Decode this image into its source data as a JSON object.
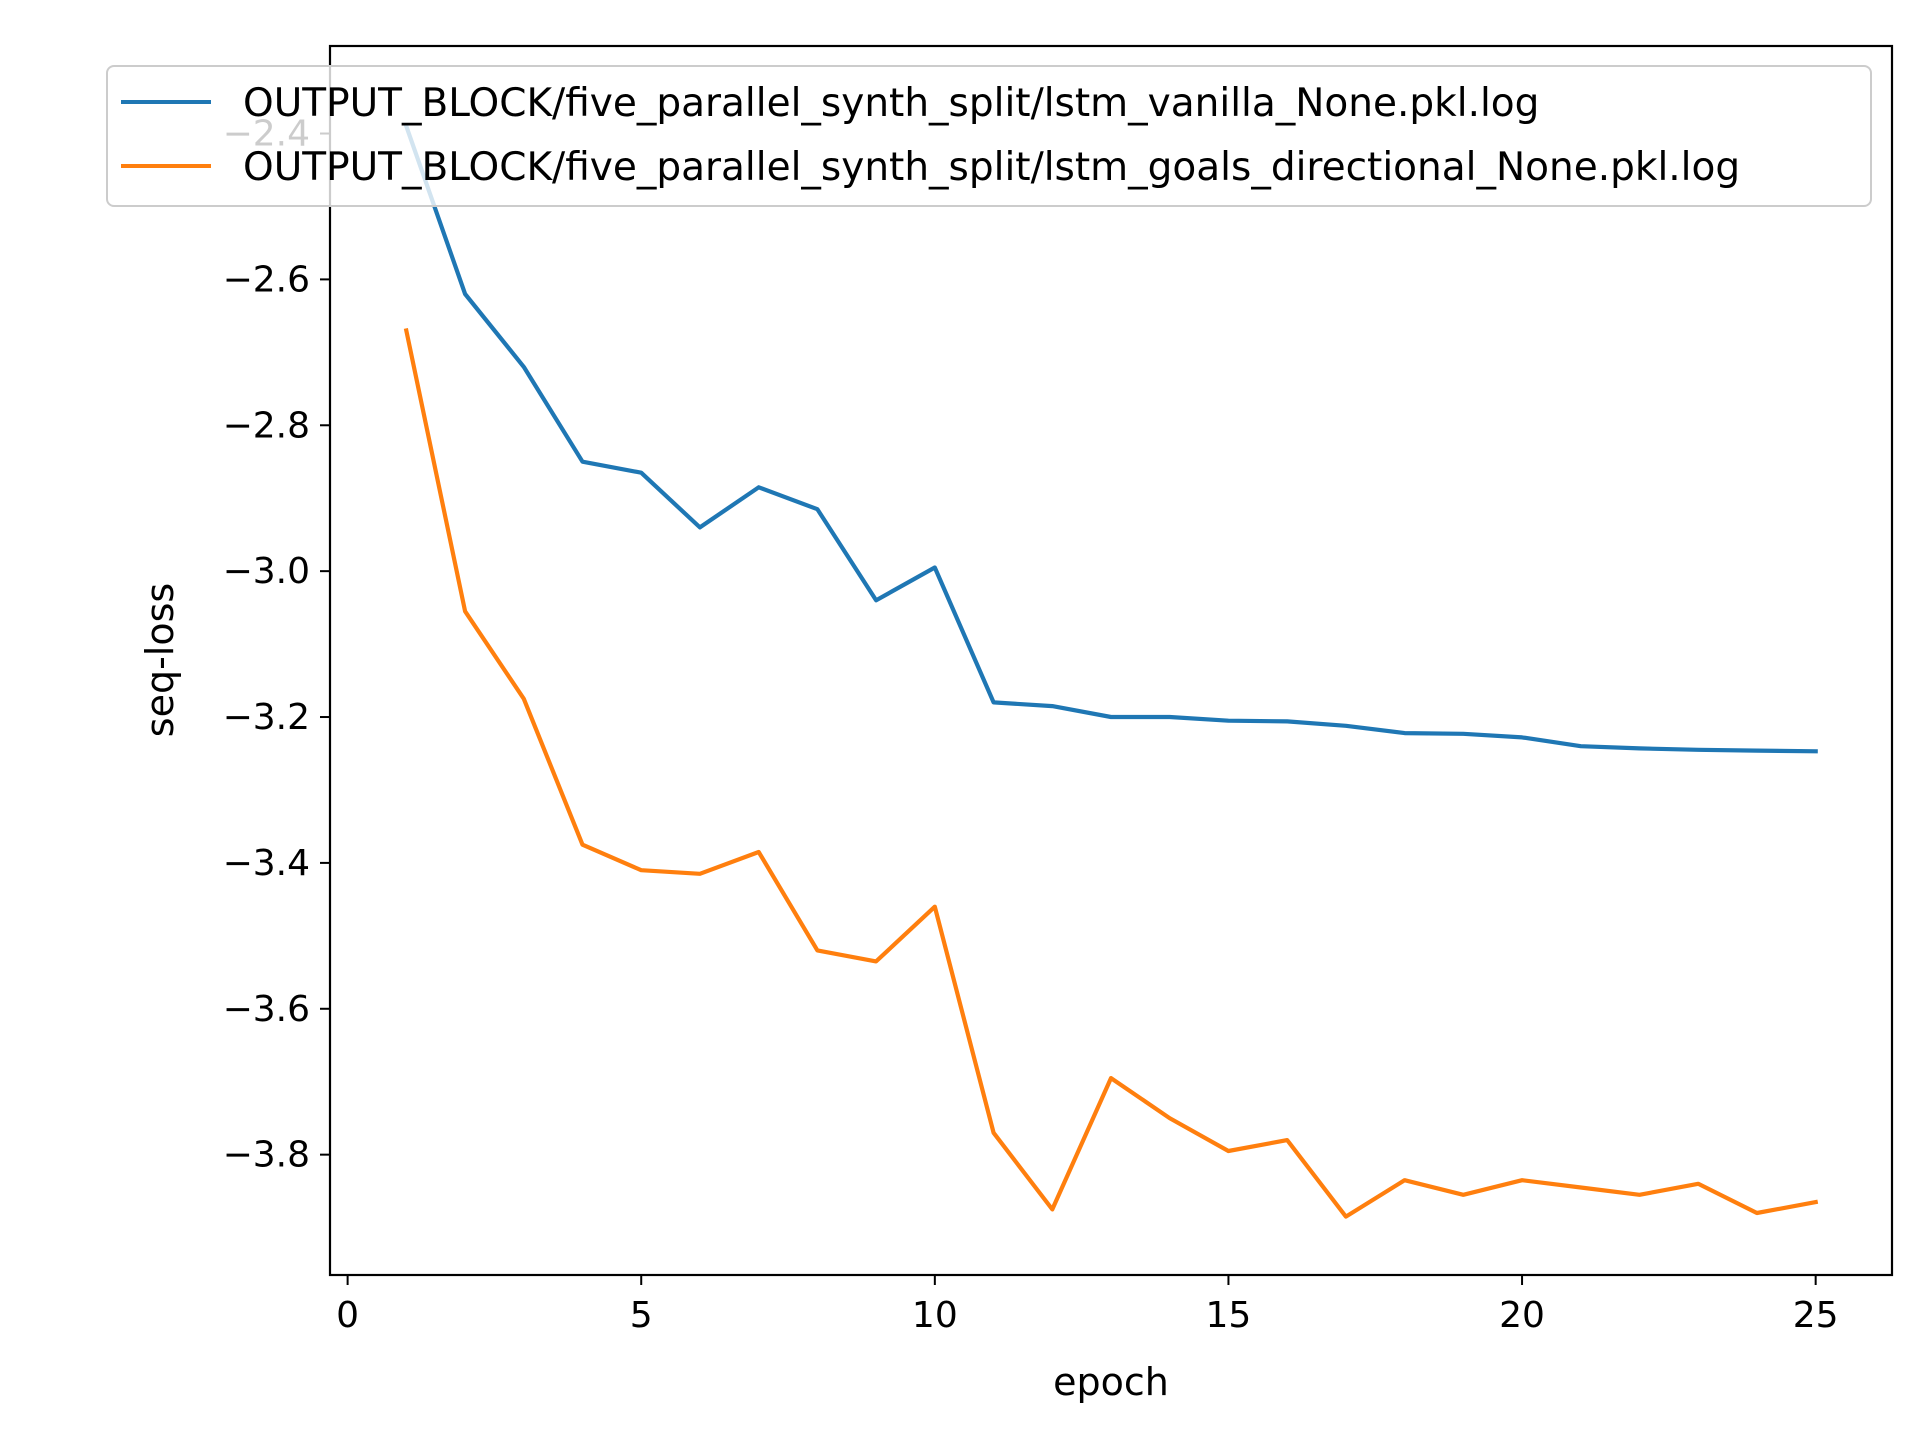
{
  "chart_data": {
    "type": "line",
    "title": "",
    "xlabel": "epoch",
    "ylabel": "seq-loss",
    "xlim": [
      -0.3,
      26.3
    ],
    "ylim": [
      -3.965,
      -2.28
    ],
    "xticks": [
      0,
      5,
      10,
      15,
      20,
      25
    ],
    "yticks": [
      -3.8,
      -3.6,
      -3.4,
      -3.2,
      -3.0,
      -2.8,
      -2.6,
      -2.4
    ],
    "xtick_labels": [
      "0",
      "5",
      "10",
      "15",
      "20",
      "25"
    ],
    "ytick_labels": [
      "−3.8",
      "−3.6",
      "−3.4",
      "−3.2",
      "−3.0",
      "−2.8",
      "−2.6",
      "−2.4"
    ],
    "grid": false,
    "legend_position": "top",
    "x": [
      1,
      2,
      3,
      4,
      5,
      6,
      7,
      8,
      9,
      10,
      11,
      12,
      13,
      14,
      15,
      16,
      17,
      18,
      19,
      20,
      21,
      22,
      23,
      24,
      25
    ],
    "series": [
      {
        "name": "OUTPUT_BLOCK/five_parallel_synth_split/lstm_vanilla_None.pkl.log",
        "color": "#1f77b4",
        "values": [
          -2.39,
          -2.62,
          -2.72,
          -2.85,
          -2.865,
          -2.94,
          -2.885,
          -2.915,
          -3.04,
          -2.995,
          -3.18,
          -3.185,
          -3.2,
          -3.2,
          -3.205,
          -3.206,
          -3.212,
          -3.222,
          -3.223,
          -3.228,
          -3.24,
          -3.243,
          -3.245,
          -3.246,
          -3.247
        ]
      },
      {
        "name": "OUTPUT_BLOCK/five_parallel_synth_split/lstm_goals_directional_None.pkl.log",
        "color": "#ff7f0e",
        "values": [
          -2.67,
          -3.055,
          -3.175,
          -3.375,
          -3.41,
          -3.415,
          -3.385,
          -3.52,
          -3.535,
          -3.46,
          -3.77,
          -3.875,
          -3.695,
          -3.75,
          -3.795,
          -3.78,
          -3.885,
          -3.835,
          -3.855,
          -3.835,
          -3.845,
          -3.855,
          -3.84,
          -3.88,
          -3.865
        ]
      }
    ]
  }
}
